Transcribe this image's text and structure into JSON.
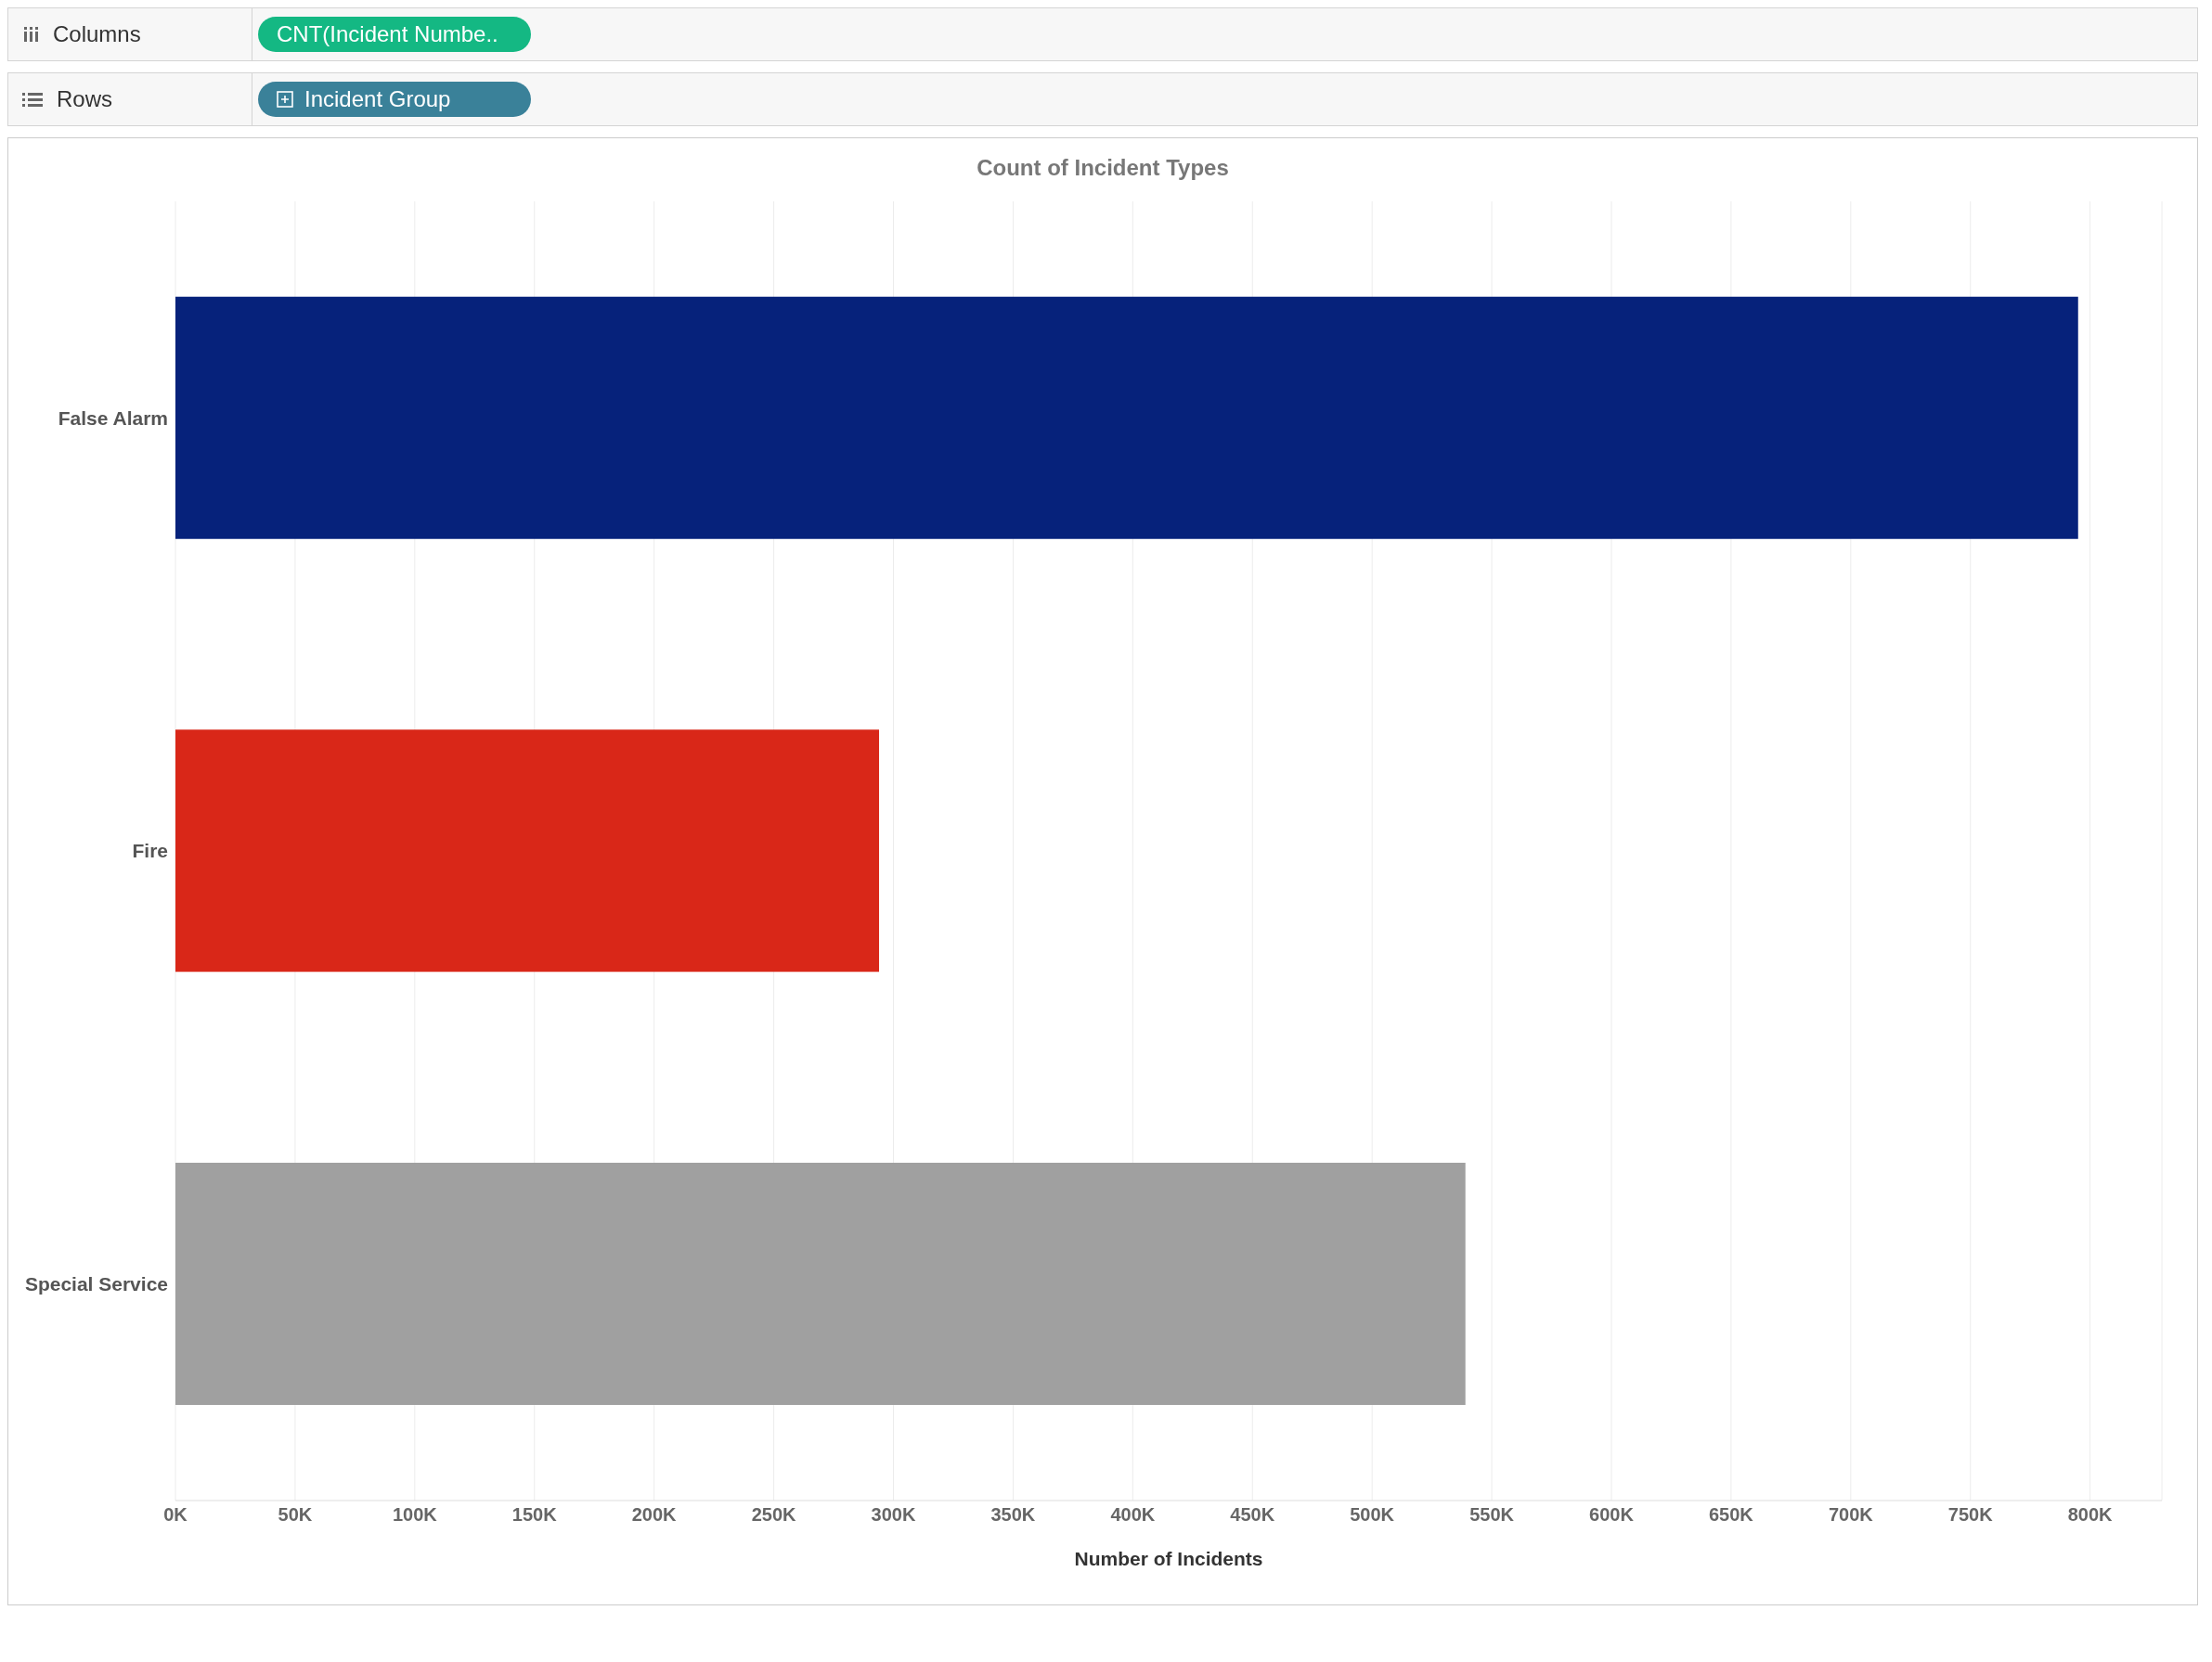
{
  "chart_data": {
    "type": "bar",
    "orientation": "horizontal",
    "title": "Count of Incident Types",
    "xlabel": "Number of Incidents",
    "categories": [
      "False Alarm",
      "Fire",
      "Special Service"
    ],
    "values": [
      795000,
      294000,
      539000
    ],
    "colors": [
      "#06227b",
      "#d92718",
      "#a0a0a0"
    ],
    "xlim": [
      0,
      830000
    ],
    "xticks": [
      {
        "value": 0,
        "label": "0K"
      },
      {
        "value": 50000,
        "label": "50K"
      },
      {
        "value": 100000,
        "label": "100K"
      },
      {
        "value": 150000,
        "label": "150K"
      },
      {
        "value": 200000,
        "label": "200K"
      },
      {
        "value": 250000,
        "label": "250K"
      },
      {
        "value": 300000,
        "label": "300K"
      },
      {
        "value": 350000,
        "label": "350K"
      },
      {
        "value": 400000,
        "label": "400K"
      },
      {
        "value": 450000,
        "label": "450K"
      },
      {
        "value": 500000,
        "label": "500K"
      },
      {
        "value": 550000,
        "label": "550K"
      },
      {
        "value": 600000,
        "label": "600K"
      },
      {
        "value": 650000,
        "label": "650K"
      },
      {
        "value": 700000,
        "label": "700K"
      },
      {
        "value": 750000,
        "label": "750K"
      },
      {
        "value": 800000,
        "label": "800K"
      }
    ],
    "grid": "x",
    "legend": false,
    "annotations": [
      "Columns",
      "CNT(Incident Numbe..",
      "Rows",
      "Incident Group"
    ]
  }
}
